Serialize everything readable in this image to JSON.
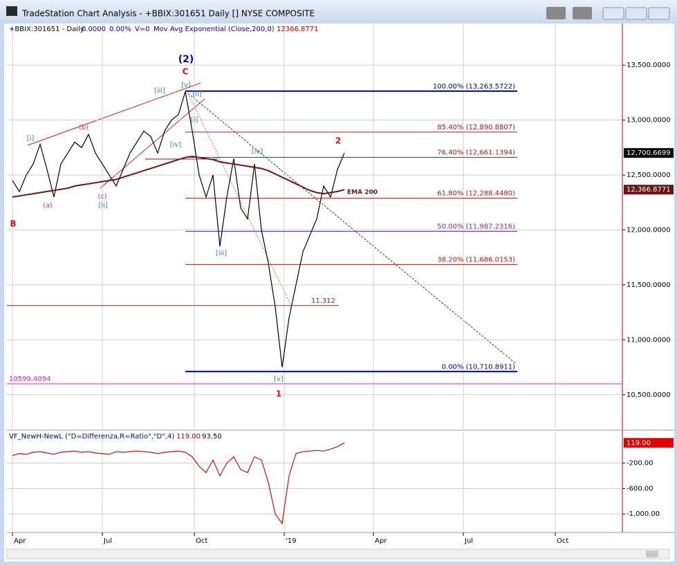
{
  "window": {
    "title": "TradeStation Chart Analysis - +BBIX:301651 Daily [] NYSE COMPOSITE"
  },
  "chart_data": [
    {
      "type": "line",
      "header": [
        "0.0000",
        "0.00%",
        "V=0",
        "Mov Avg Exponential (Close,200,0)",
        "12366.8771"
      ],
      "x": [
        0,
        1,
        2,
        3,
        4,
        5,
        6,
        7,
        8,
        9,
        10,
        11,
        12,
        13,
        14,
        15,
        16,
        17,
        18,
        19,
        20,
        21,
        22,
        23,
        24,
        25,
        26,
        27,
        28,
        29,
        30,
        31,
        32,
        33,
        34,
        35,
        36,
        37,
        38,
        39,
        40,
        41,
        42,
        43,
        44,
        45,
        46,
        47,
        48
      ],
      "series": [
        {
          "name": "+BBIX:301651 - Daily",
          "color": "#000000",
          "values": [
            12450,
            12350,
            12500,
            12600,
            12780,
            12550,
            12300,
            12600,
            12700,
            12800,
            12750,
            12870,
            12700,
            12600,
            12500,
            12400,
            12550,
            12700,
            12800,
            12900,
            12850,
            12700,
            12900,
            13000,
            13050,
            13260,
            12900,
            12500,
            12300,
            12500,
            11850,
            12300,
            12650,
            12200,
            12100,
            12600,
            12000,
            11700,
            11300,
            10750,
            11200,
            11500,
            11800,
            11950,
            12100,
            12400,
            12300,
            12550,
            12700
          ]
        },
        {
          "name": "EMA 200",
          "color": "#6b1414",
          "values": [
            12300,
            12310,
            12320,
            12330,
            12340,
            12350,
            12360,
            12370,
            12380,
            12400,
            12410,
            12420,
            12430,
            12440,
            12450,
            12460,
            12480,
            12500,
            12520,
            12540,
            12560,
            12580,
            12600,
            12620,
            12640,
            12660,
            12670,
            12660,
            12650,
            12640,
            12620,
            12610,
            12600,
            12590,
            12580,
            12570,
            12560,
            12540,
            12510,
            12480,
            12450,
            12420,
            12390,
            12360,
            12340,
            12330,
            12340,
            12350,
            12367
          ]
        }
      ],
      "xlim": [
        -0.8,
        88.2
      ],
      "xticks": [
        {
          "value": 0,
          "label": "Apr"
        },
        {
          "value": 13,
          "label": "Jul"
        },
        {
          "value": 26.3,
          "label": "Oct"
        },
        {
          "value": 39.3,
          "label": "'19"
        },
        {
          "value": 52.2,
          "label": "Apr"
        },
        {
          "value": 65.2,
          "label": "Jul"
        },
        {
          "value": 78.5,
          "label": "Oct"
        }
      ],
      "ylim": [
        10190,
        13873
      ],
      "yticks": [
        {
          "value": 10500,
          "label": "10,500.0000"
        },
        {
          "value": 11000,
          "label": "11,000.0000"
        },
        {
          "value": 11500,
          "label": "11,500.0000"
        },
        {
          "value": 12000,
          "label": "12,000.0000"
        },
        {
          "value": 12500,
          "label": "12,500.0000"
        },
        {
          "value": 13000,
          "label": "13,000.0000"
        },
        {
          "value": 13500,
          "label": "13,500.0000"
        }
      ],
      "grid": true,
      "levels": [
        {
          "value": 13263.5722,
          "label": "100.00% (13,263.5722)",
          "color": "#000080"
        },
        {
          "value": 12890.8807,
          "label": "85.40% (12,890.8807)",
          "color": "#b01818"
        },
        {
          "value": 12661.1394,
          "label": "76.40% (12,661.1394)",
          "color": "#b01818"
        },
        {
          "value": 12288.448,
          "label": "61.80% (12,288.4480)",
          "color": "#b01818"
        },
        {
          "value": 11987.2316,
          "label": "50.00% (11,987.2316)",
          "color": "#7030a0"
        },
        {
          "value": 11686.0153,
          "label": "38.20% (11,686.0153)",
          "color": "#b01818"
        },
        {
          "value": 10710.8911,
          "label": "0.00% (10,710.8911)",
          "color": "#000080"
        },
        {
          "value": 11312,
          "label": "11.312",
          "color": "#b01818"
        },
        {
          "value": 10599.4094,
          "label": "10599.4094",
          "color": "#e020c0"
        }
      ],
      "last_values": [
        {
          "value": 12700.6699,
          "label": "12,700.6699",
          "color": "#000000"
        },
        {
          "value": 12366.8771,
          "label": "12,366.8771",
          "color": "#6b1414"
        }
      ],
      "annotations": [
        {
          "text": "(2)",
          "color": "#0000c0"
        },
        {
          "text": "C",
          "color": "#e01010"
        },
        {
          "text": "[iii]",
          "color": "#2a8a9a"
        },
        {
          "text": "[v]",
          "color": "#2a8a9a"
        },
        {
          "text": "[ii]",
          "color": "#2a8a9a"
        },
        {
          "text": "[i]",
          "color": "#2a8a9a"
        },
        {
          "text": "[iv]",
          "color": "#2a8a9a"
        },
        {
          "text": "(b)",
          "color": "#cc33cc"
        },
        {
          "text": "[i]",
          "color": "#2a8a9a"
        },
        {
          "text": "(a)",
          "color": "#cc33cc"
        },
        {
          "text": "(c)",
          "color": "#cc33cc"
        },
        {
          "text": "[ii]",
          "color": "#2a8a9a"
        },
        {
          "text": "B",
          "color": "#e01010"
        },
        {
          "text": "[iii]",
          "color": "#2a8a9a"
        },
        {
          "text": "[iv]",
          "color": "#2a8a9a"
        },
        {
          "text": "[v]",
          "color": "#2a8a9a"
        },
        {
          "text": "1",
          "color": "#e01010"
        },
        {
          "text": "2",
          "color": "#e01010"
        }
      ]
    },
    {
      "type": "line",
      "header": [
        "119.00",
        "93.50"
      ],
      "x": [
        0,
        1,
        2,
        3,
        4,
        5,
        6,
        7,
        8,
        9,
        10,
        11,
        12,
        13,
        14,
        15,
        16,
        17,
        18,
        19,
        20,
        21,
        22,
        23,
        24,
        25,
        26,
        27,
        28,
        29,
        30,
        31,
        32,
        33,
        34,
        35,
        36,
        37,
        38,
        39,
        40,
        41,
        42,
        43,
        44,
        45,
        46,
        47,
        48
      ],
      "series": [
        {
          "name": "VF_NewH-NewL (\"D=Differenza,R=Ratio\",\"D\",4)",
          "color": "#c81010",
          "values": [
            -80,
            -50,
            -60,
            -30,
            -20,
            -40,
            -60,
            -30,
            -20,
            -10,
            -30,
            -20,
            -40,
            -50,
            -60,
            -20,
            -30,
            -20,
            -10,
            -20,
            -30,
            -50,
            -30,
            -20,
            -10,
            -30,
            -100,
            -250,
            -350,
            -150,
            -400,
            -200,
            -100,
            -300,
            -350,
            -100,
            -150,
            -500,
            -1000,
            -1150,
            -400,
            -50,
            -20,
            -10,
            0,
            -10,
            20,
            60,
            119
          ]
        }
      ],
      "xlim": [
        -0.8,
        88.2
      ],
      "ylim": [
        -1270,
        286
      ],
      "yticks": [
        {
          "value": -1000,
          "label": "-1,000.00"
        },
        {
          "value": -600,
          "label": "-600.00"
        },
        {
          "value": -200,
          "label": "-200.00"
        }
      ],
      "grid": true,
      "last_values": [
        {
          "value": 119,
          "label": "119.00",
          "color": "#e00000"
        }
      ]
    }
  ]
}
